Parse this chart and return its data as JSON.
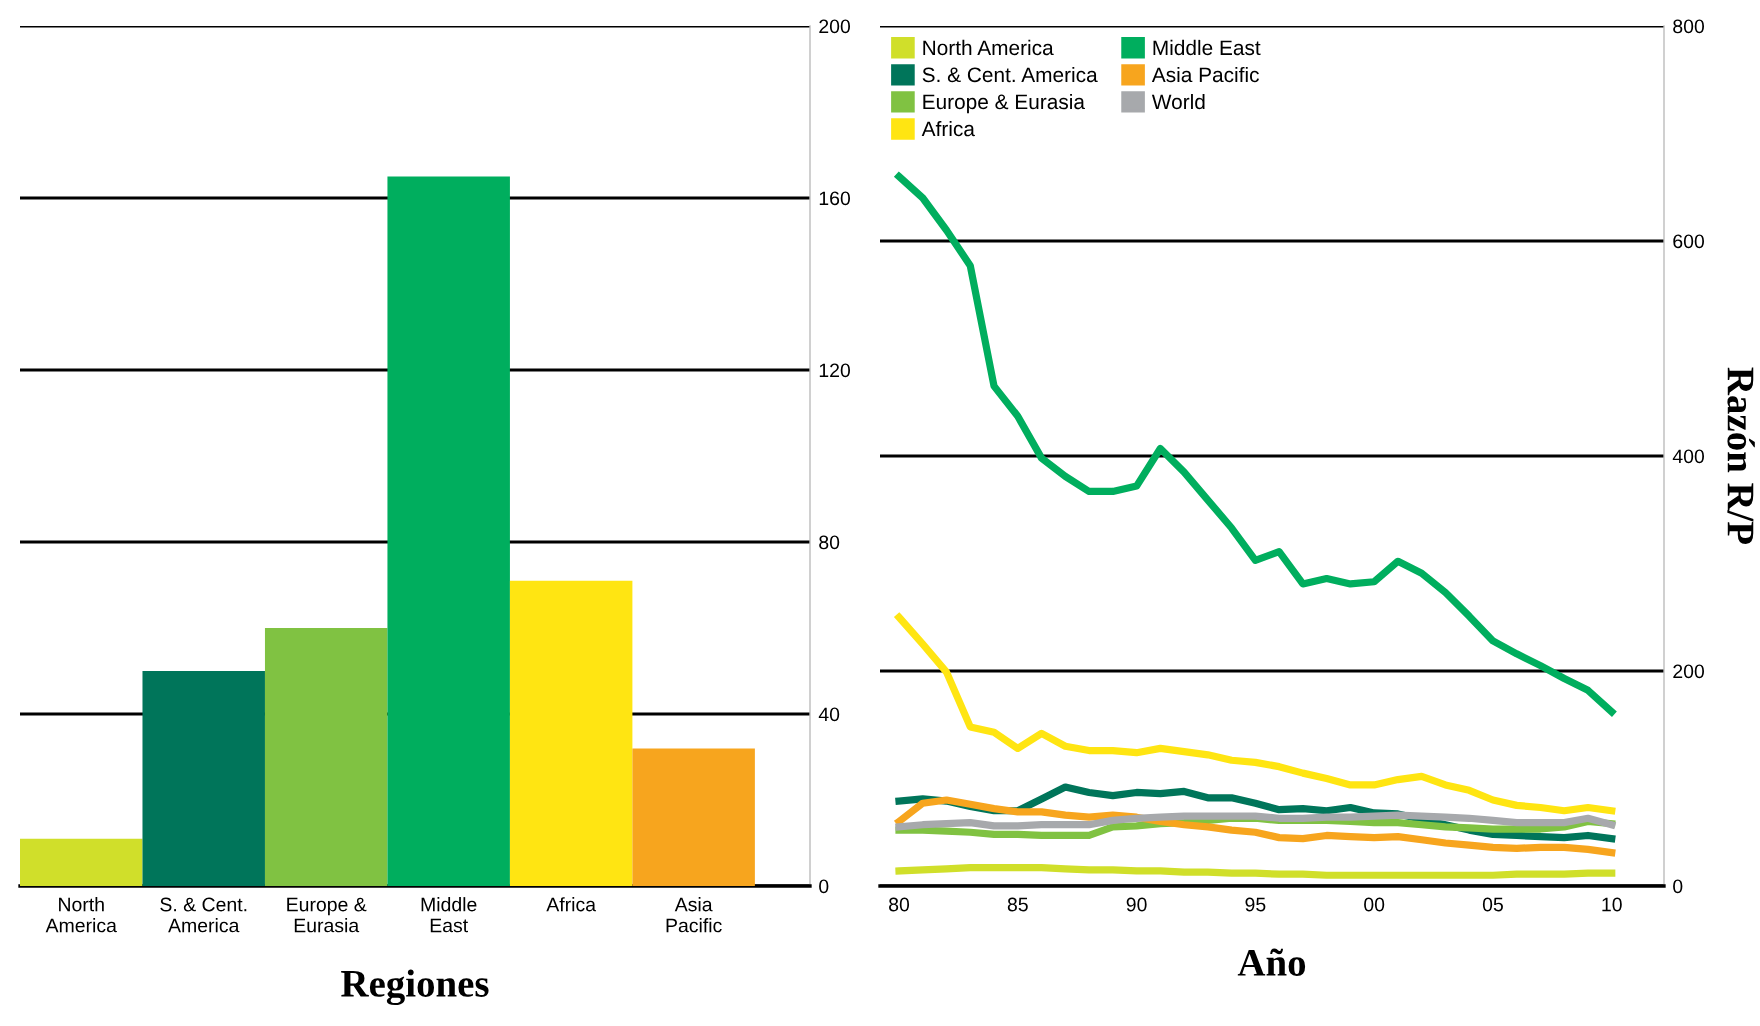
{
  "chart_data": [
    {
      "type": "bar",
      "xlabel": "Regiones",
      "categories": [
        "North\nAmerica",
        "S. & Cent.\nAmerica",
        "Europe &\nEurasia",
        "Middle\nEast",
        "Africa",
        "Asia\nPacific"
      ],
      "values": [
        11,
        50,
        60,
        165,
        71,
        32
      ],
      "colors": [
        "#d0df2a",
        "#00755a",
        "#80c242",
        "#00ae5e",
        "#ffe512",
        "#f7a51e"
      ],
      "ylim": [
        0,
        200
      ],
      "yticks": [
        0,
        40,
        80,
        120,
        160,
        200
      ],
      "grid": "y",
      "legend": false
    },
    {
      "type": "line",
      "xlabel": "Año",
      "ylabel": "Razón R/P",
      "x": [
        1980,
        1981,
        1982,
        1983,
        1984,
        1985,
        1986,
        1987,
        1988,
        1989,
        1990,
        1991,
        1992,
        1993,
        1994,
        1995,
        1996,
        1997,
        1998,
        1999,
        2000,
        2001,
        2002,
        2003,
        2004,
        2005,
        2006,
        2007,
        2008,
        2009,
        2010
      ],
      "series": [
        {
          "name": "North America",
          "color": "#d0df2a",
          "values": [
            14,
            15,
            16,
            17,
            17,
            17,
            17,
            16,
            15,
            15,
            14,
            14,
            13,
            13,
            12,
            12,
            11,
            11,
            10,
            10,
            10,
            10,
            10,
            10,
            10,
            10,
            11,
            11,
            11,
            12,
            12
          ]
        },
        {
          "name": "S. & Cent. America",
          "color": "#00755a",
          "values": [
            79,
            81,
            79,
            74,
            70,
            70,
            81,
            92,
            87,
            84,
            87,
            86,
            88,
            82,
            82,
            77,
            71,
            72,
            70,
            73,
            68,
            67,
            62,
            57,
            52,
            48,
            47,
            46,
            45,
            47,
            44
          ]
        },
        {
          "name": "Europe & Eurasia",
          "color": "#80c242",
          "values": [
            52,
            52,
            51,
            50,
            48,
            48,
            47,
            47,
            47,
            55,
            56,
            58,
            59,
            61,
            63,
            63,
            61,
            61,
            61,
            60,
            59,
            59,
            57,
            55,
            54,
            53,
            53,
            53,
            55,
            60,
            58
          ]
        },
        {
          "name": "Africa",
          "color": "#ffe512",
          "values": [
            250,
            225,
            199,
            148,
            143,
            128,
            142,
            130,
            126,
            126,
            124,
            128,
            125,
            122,
            117,
            115,
            111,
            105,
            100,
            94,
            94,
            99,
            102,
            94,
            89,
            80,
            75,
            73,
            70,
            73,
            70
          ]
        },
        {
          "name": "Middle East",
          "color": "#00ae5e",
          "values": [
            660,
            640,
            610,
            577,
            465,
            437,
            398,
            381,
            367,
            367,
            372,
            407,
            385,
            359,
            333,
            303,
            311,
            281,
            286,
            281,
            283,
            302,
            291,
            273,
            251,
            228,
            216,
            205,
            193,
            182,
            162
          ]
        },
        {
          "name": "Asia Pacific",
          "color": "#f7a51e",
          "values": [
            60,
            77,
            80,
            76,
            72,
            69,
            69,
            66,
            64,
            66,
            64,
            60,
            57,
            55,
            52,
            50,
            45,
            44,
            47,
            46,
            45,
            46,
            43,
            40,
            38,
            36,
            35,
            36,
            36,
            34,
            31
          ]
        },
        {
          "name": "World",
          "color": "#a7a9ac",
          "values": [
            55,
            57,
            58,
            59,
            56,
            56,
            57,
            57,
            57,
            61,
            63,
            64,
            65,
            65,
            65,
            65,
            63,
            63,
            64,
            64,
            65,
            66,
            65,
            64,
            63,
            61,
            59,
            59,
            59,
            63,
            57
          ]
        }
      ],
      "xlim": [
        1979.2,
        2012.2
      ],
      "xticks": [
        {
          "value": 1980,
          "label": "80"
        },
        {
          "value": 1985,
          "label": "85"
        },
        {
          "value": 1990,
          "label": "90"
        },
        {
          "value": 1995,
          "label": "95"
        },
        {
          "value": 2000,
          "label": "00"
        },
        {
          "value": 2005,
          "label": "05"
        },
        {
          "value": 2010,
          "label": "10"
        }
      ],
      "ylim": [
        0,
        800
      ],
      "yticks": [
        0,
        200,
        400,
        600,
        800
      ],
      "grid": "y",
      "legend": "top left",
      "marker": "none",
      "line_style": "solid"
    }
  ]
}
